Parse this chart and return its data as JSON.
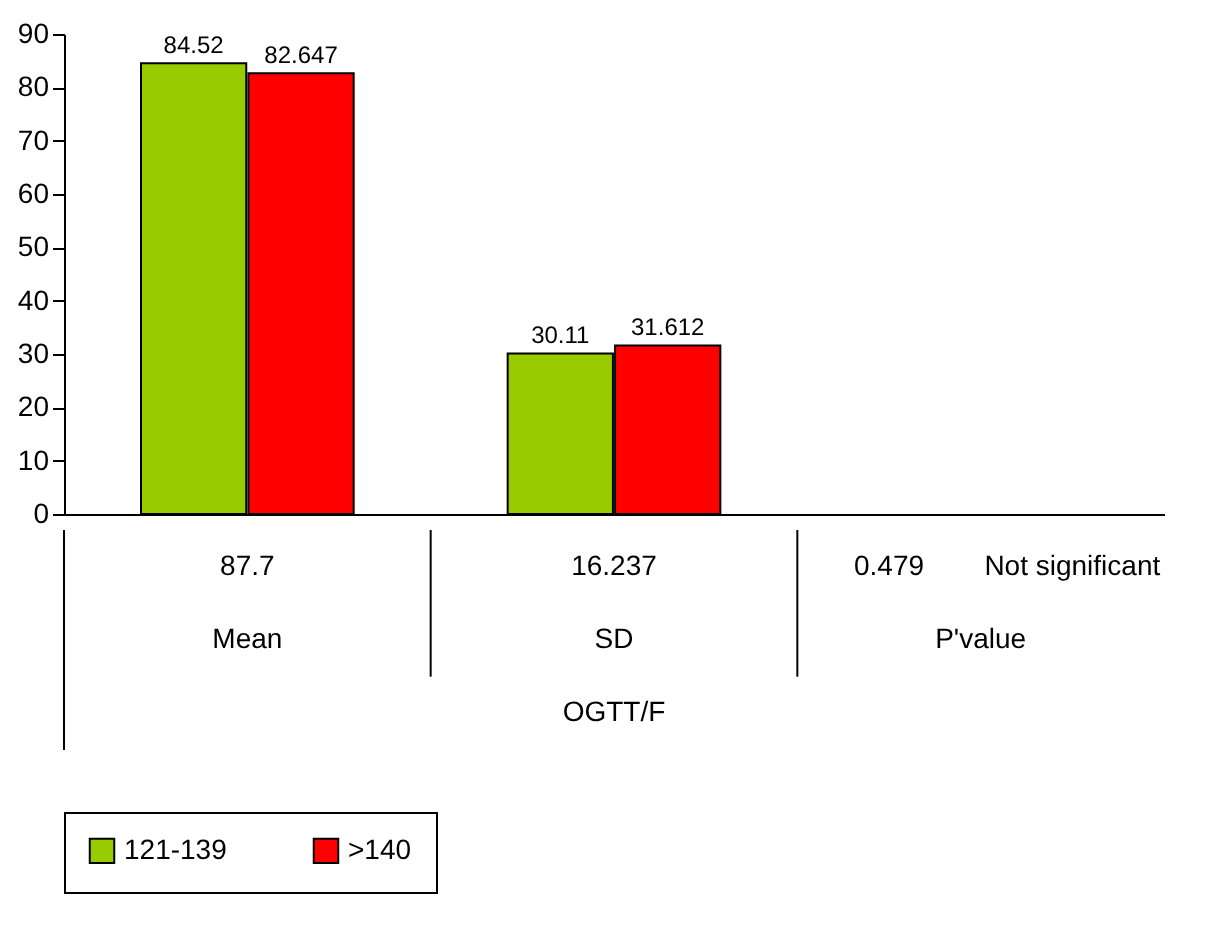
{
  "chart_data": {
    "type": "bar",
    "categories": [
      "Mean",
      "SD",
      "P'value"
    ],
    "xlabel": "OGTT/F",
    "series": [
      {
        "name": "121-139",
        "color": "#99cc00",
        "values": [
          84.52,
          30.11,
          null
        ]
      },
      {
        "name": ">140",
        "color": "#ff0000",
        "values": [
          82.647,
          31.612,
          null
        ]
      }
    ],
    "ylim": [
      0,
      90
    ],
    "yticks": [
      0,
      10,
      20,
      30,
      40,
      50,
      60,
      70,
      80,
      90
    ],
    "grid": false,
    "legend": "bottom",
    "data_labels": true,
    "annotations": [
      "87.7",
      "16.237",
      "0.479",
      "Not significant"
    ]
  }
}
